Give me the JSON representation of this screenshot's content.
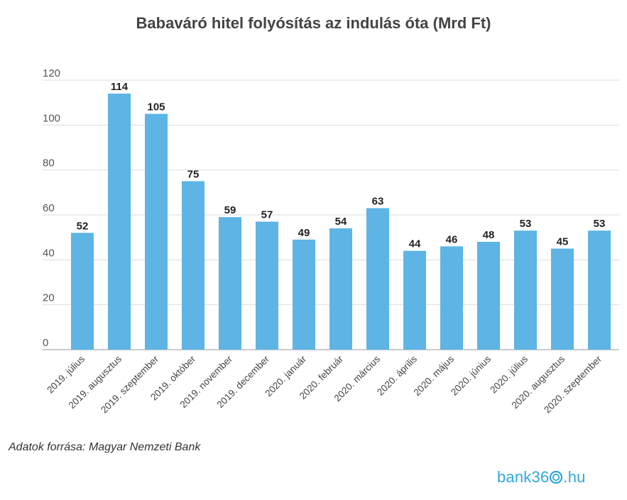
{
  "chart_data": {
    "type": "bar",
    "title": "Babaváró hitel folyósítás az indulás óta (Mrd Ft)",
    "categories": [
      "2019. július",
      "2019. augusztus",
      "2019. szeptember",
      "2019. október",
      "2019. november",
      "2019. december",
      "2020. január",
      "2020. február",
      "2020. március",
      "2020. április",
      "2020. május",
      "2020. június",
      "2020. július",
      "2020. augusztus",
      "2020. szeptember"
    ],
    "values": [
      52,
      114,
      105,
      75,
      59,
      57,
      49,
      54,
      63,
      44,
      46,
      48,
      53,
      45,
      53
    ],
    "yticks": [
      "0",
      "20",
      "40",
      "60",
      "80",
      "100",
      "120"
    ],
    "ylim": [
      0,
      120
    ],
    "grid": true,
    "bar_color": "#5db4e5",
    "data_labels": true
  },
  "footer": {
    "source": "Adatok forrása: Magyar Nemzeti Bank",
    "logo_left": "bank36",
    "logo_right": ".hu",
    "logo_color": "#2fa8d8"
  }
}
